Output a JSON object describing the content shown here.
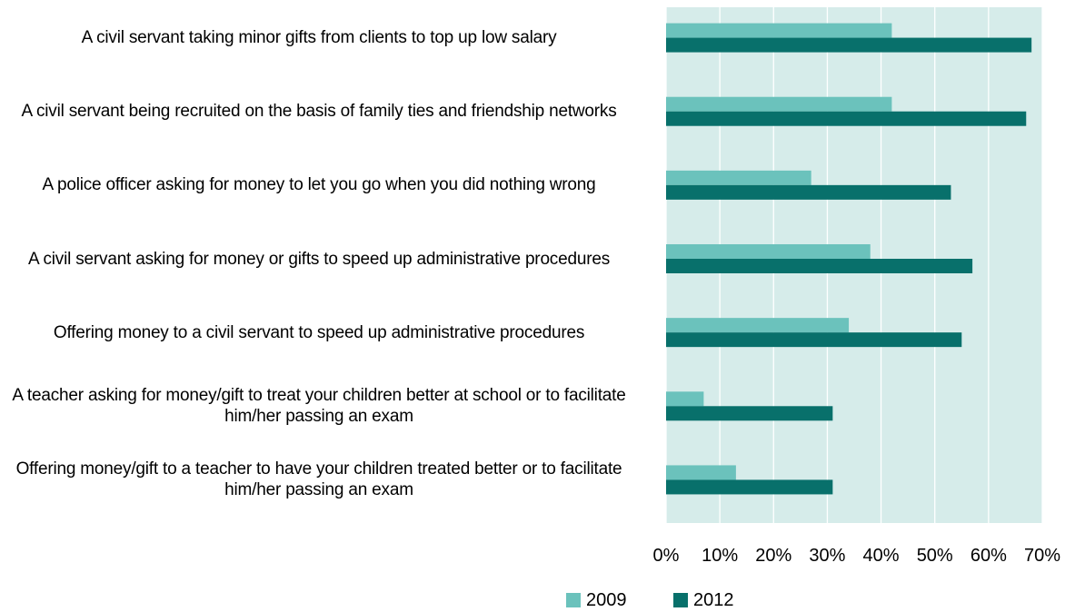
{
  "chart_data": {
    "type": "bar",
    "orientation": "horizontal",
    "categories": [
      "A civil servant taking minor gifts from clients to top up low salary",
      "A civil servant being recruited on the basis of family ties and friendship networks",
      "A police officer asking for money to let you go when you did nothing wrong",
      "A civil servant asking for money or gifts to speed up administrative procedures",
      "Offering money to a civil servant to speed up administrative procedures",
      "A teacher asking for money/gift to treat your children better at school or to facilitate him/her passing an exam",
      "Offering money/gift to a teacher to have your children treated better or to facilitate him/her passing an exam"
    ],
    "series": [
      {
        "name": "2009",
        "color": "#6bc2bc",
        "values": [
          42,
          42,
          27,
          38,
          34,
          7,
          13
        ]
      },
      {
        "name": "2012",
        "color": "#08706b",
        "values": [
          68,
          67,
          53,
          57,
          55,
          31,
          31
        ]
      }
    ],
    "xlim": [
      0,
      70
    ],
    "xticks": [
      "0%",
      "10%",
      "20%",
      "30%",
      "40%",
      "50%",
      "60%",
      "70%"
    ],
    "plot_background": "#d6ecea",
    "grid": true,
    "legend_position": "bottom",
    "title": "",
    "xlabel": "",
    "ylabel": ""
  }
}
